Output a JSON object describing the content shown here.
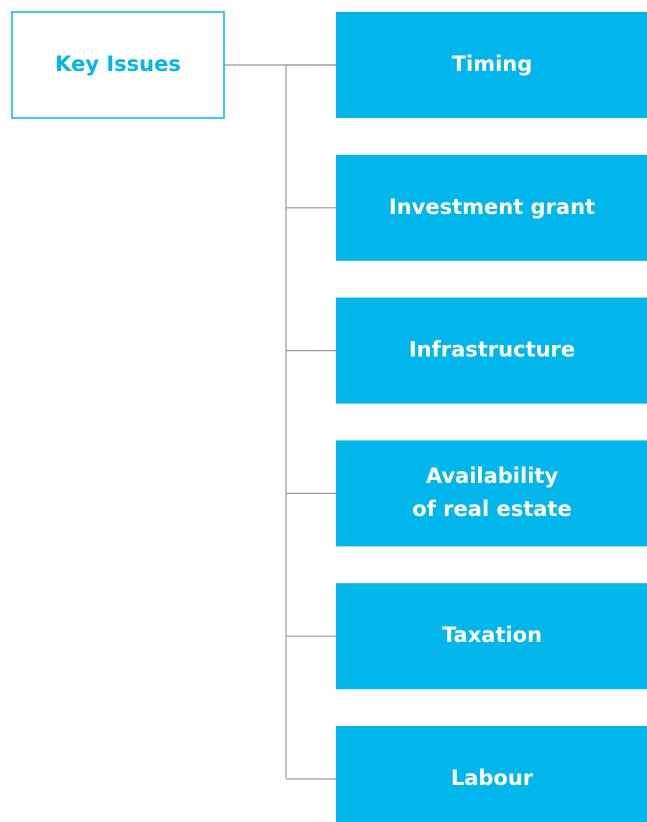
{
  "root": {
    "label": "Key Issues"
  },
  "nodes": [
    {
      "lines": [
        "Timing"
      ]
    },
    {
      "lines": [
        "Investment grant"
      ]
    },
    {
      "lines": [
        "Infrastructure"
      ]
    },
    {
      "lines": [
        "Availability",
        "of real estate"
      ]
    },
    {
      "lines": [
        "Taxation"
      ]
    },
    {
      "lines": [
        "Labour"
      ]
    }
  ]
}
